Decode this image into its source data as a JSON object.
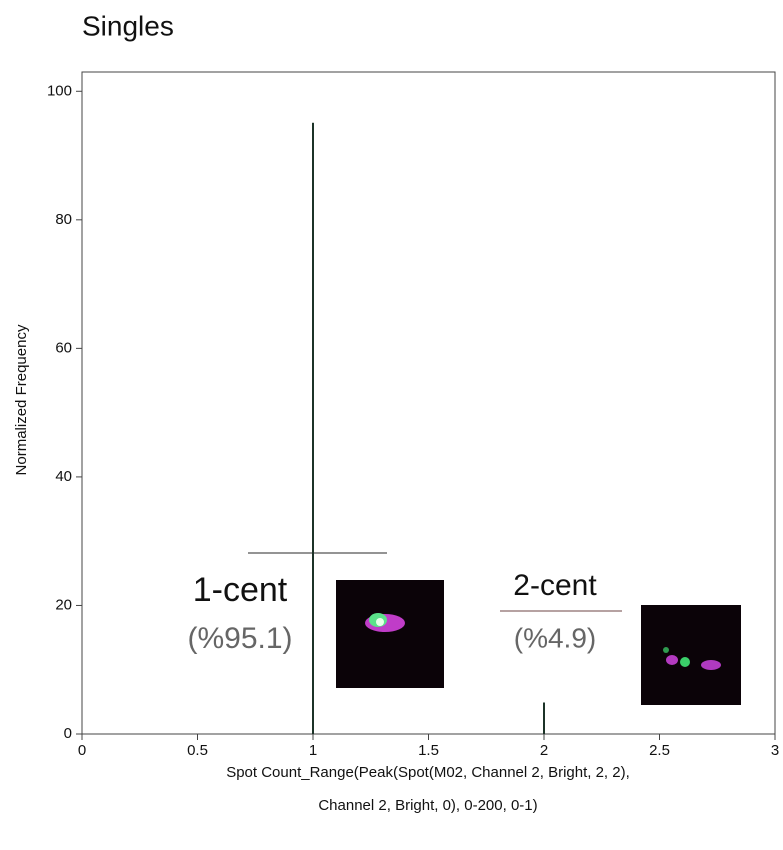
{
  "chart_data": {
    "type": "bar",
    "title": "Singles",
    "xlabel": [
      "Spot Count_Range(Peak(Spot(M02, Channel 2, Bright, 2, 2),",
      "Channel 2, Bright, 0), 0-200, 0-1)"
    ],
    "ylabel": "Normalized Frequency",
    "x": [
      1,
      2
    ],
    "values": [
      95.1,
      4.9
    ],
    "color": "#1c3328",
    "xlim": [
      0,
      3
    ],
    "xticks": [
      0,
      0.5,
      1,
      1.5,
      2,
      2.5,
      3
    ],
    "ylim": [
      0,
      103
    ],
    "yticks": [
      0,
      20,
      40,
      60,
      80,
      100
    ],
    "annotations": [
      "1-cent",
      "(%95.1)",
      "2-cent",
      "(%4.9)"
    ]
  }
}
